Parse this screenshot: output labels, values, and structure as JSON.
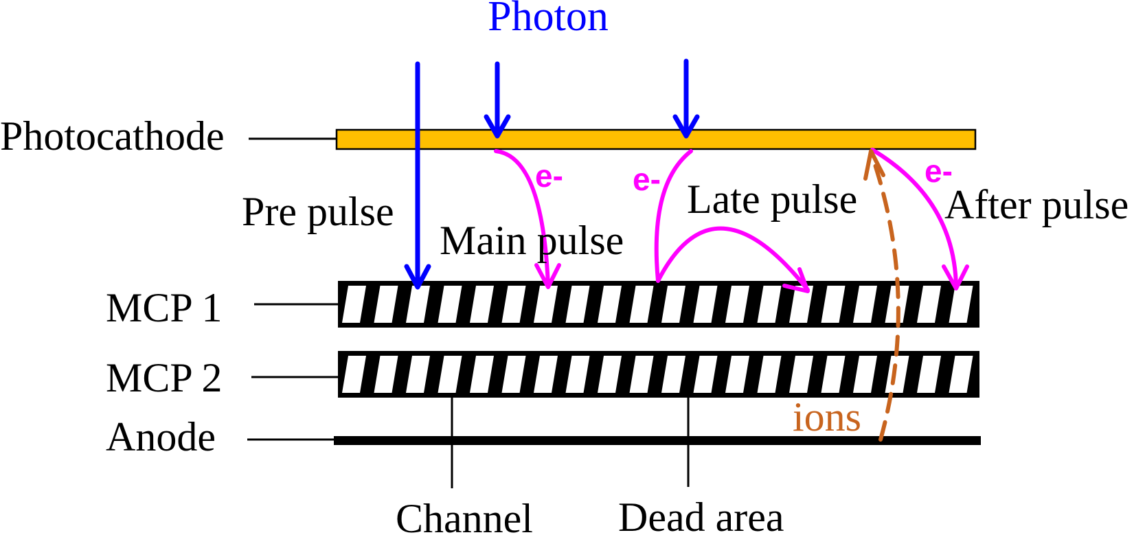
{
  "labels": {
    "photon": "Photon",
    "photocathode": "Photocathode",
    "pre_pulse": "Pre pulse",
    "main_pulse": "Main pulse",
    "late_pulse": "Late pulse",
    "after_pulse": "After pulse",
    "electron": "e-",
    "mcp1": "MCP 1",
    "mcp2": "MCP 2",
    "anode": "Anode",
    "ions": "ions",
    "channel": "Channel",
    "dead_area": "Dead area"
  },
  "colors": {
    "photon": "#0000ff",
    "electron": "#ff00ff",
    "ion": "#c8641e",
    "photocathode_fill": "#ffbf00",
    "structure": "#000000"
  }
}
